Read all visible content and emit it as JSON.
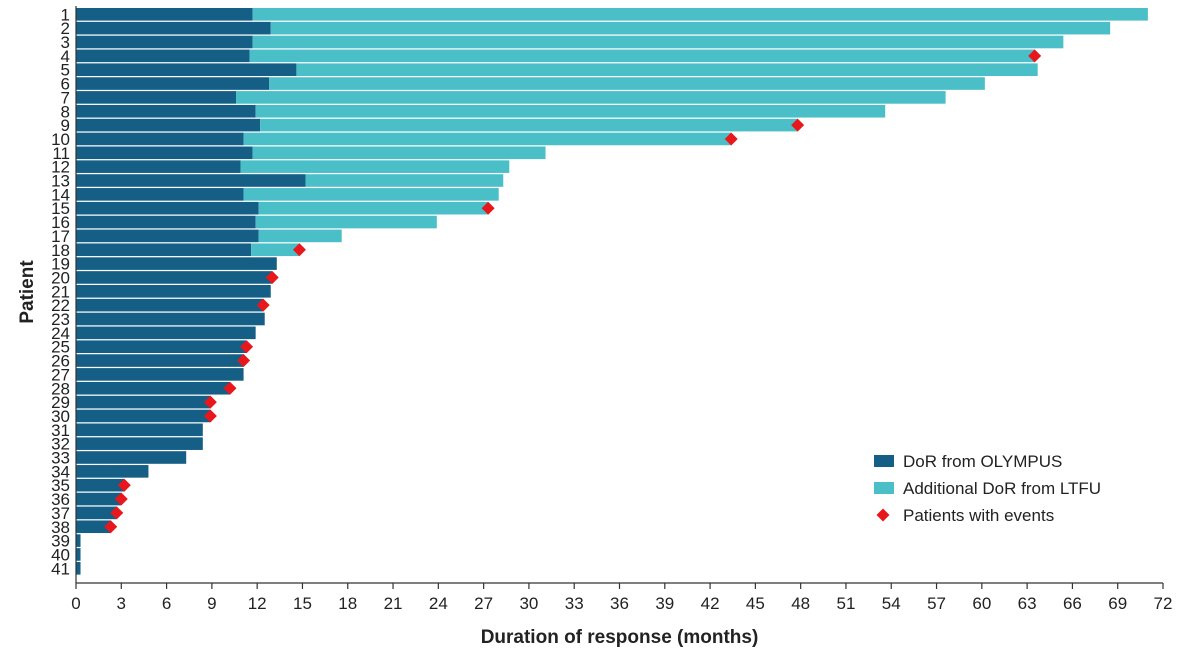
{
  "chart_data": {
    "type": "bar",
    "orientation": "horizontal",
    "xlabel": "Duration of response (months)",
    "ylabel": "Patient",
    "xlim": [
      0,
      72
    ],
    "xticks": [
      0,
      3,
      6,
      9,
      12,
      15,
      18,
      21,
      24,
      27,
      30,
      33,
      36,
      39,
      42,
      45,
      48,
      51,
      54,
      57,
      60,
      63,
      66,
      69,
      72
    ],
    "categories": [
      "1",
      "2",
      "3",
      "4",
      "5",
      "6",
      "7",
      "8",
      "9",
      "10",
      "11",
      "12",
      "13",
      "14",
      "15",
      "16",
      "17",
      "18",
      "19",
      "20",
      "21",
      "22",
      "23",
      "24",
      "25",
      "26",
      "27",
      "28",
      "29",
      "30",
      "31",
      "32",
      "33",
      "34",
      "35",
      "36",
      "37",
      "38",
      "39",
      "40",
      "41"
    ],
    "series": [
      {
        "name": "DoR from OLYMPUS",
        "color": "#155f86",
        "values": [
          11.7,
          12.9,
          11.7,
          11.5,
          14.6,
          12.8,
          10.6,
          11.9,
          12.2,
          11.1,
          11.7,
          10.9,
          15.2,
          11.1,
          12.1,
          11.9,
          12.1,
          11.6,
          13.3,
          13.0,
          12.9,
          12.4,
          12.5,
          11.9,
          11.3,
          11.1,
          11.1,
          10.2,
          8.9,
          8.9,
          8.4,
          8.4,
          7.3,
          4.8,
          3.2,
          3.0,
          2.7,
          2.3,
          0.3,
          0.3,
          0.3
        ]
      },
      {
        "name": "Additional DoR from LTFU",
        "color": "#4bbfc8",
        "values": [
          59.3,
          55.6,
          53.7,
          52.0,
          49.1,
          47.4,
          47.0,
          41.7,
          35.6,
          32.3,
          19.4,
          17.8,
          13.1,
          16.9,
          15.2,
          12.0,
          5.5,
          3.2,
          0,
          0,
          0,
          0,
          0,
          0,
          0,
          0,
          0,
          0,
          0,
          0,
          0,
          0,
          0,
          0,
          0,
          0,
          0,
          0,
          0,
          0,
          0
        ]
      },
      {
        "name": "Patients with events",
        "color": "#e8171c",
        "marker": "diamond",
        "points": [
          {
            "patient": "4",
            "x": 63.5
          },
          {
            "patient": "9",
            "x": 47.8
          },
          {
            "patient": "10",
            "x": 43.4
          },
          {
            "patient": "15",
            "x": 27.3
          },
          {
            "patient": "18",
            "x": 14.8
          },
          {
            "patient": "20",
            "x": 13.0
          },
          {
            "patient": "22",
            "x": 12.4
          },
          {
            "patient": "25",
            "x": 11.3
          },
          {
            "patient": "26",
            "x": 11.1
          },
          {
            "patient": "28",
            "x": 10.2
          },
          {
            "patient": "29",
            "x": 8.9
          },
          {
            "patient": "30",
            "x": 8.9
          },
          {
            "patient": "35",
            "x": 3.2
          },
          {
            "patient": "36",
            "x": 3.0
          },
          {
            "patient": "37",
            "x": 2.7
          },
          {
            "patient": "38",
            "x": 2.3
          }
        ]
      }
    ],
    "legend": {
      "placement": "bottom-right",
      "items": [
        "DoR from OLYMPUS",
        "Additional DoR from LTFU",
        "Patients with events"
      ]
    }
  }
}
